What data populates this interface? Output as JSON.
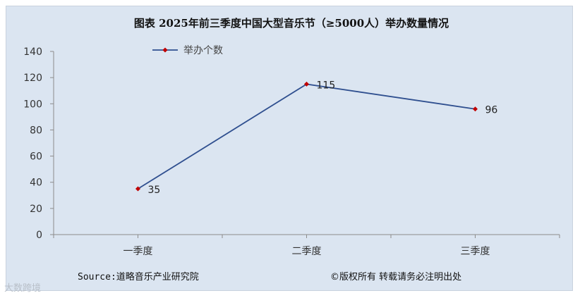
{
  "chart_data": {
    "type": "line",
    "title": "图表 2025年前三季度中国大型音乐节（≥5000人）举办数量情况",
    "categories": [
      "一季度",
      "二季度",
      "三季度"
    ],
    "series": [
      {
        "name": "举办个数",
        "values": [
          35,
          115,
          96
        ]
      }
    ],
    "ylim": [
      0,
      140
    ],
    "yticks": [
      0,
      20,
      40,
      60,
      80,
      100,
      120,
      140
    ],
    "grid": false,
    "legend": "top-left",
    "colors": {
      "line": "#2f4f8f",
      "marker": "#c00000",
      "background": "#dbe5f1"
    }
  },
  "footer": {
    "source": "Source:道略音乐产业研究院",
    "copyright": "©版权所有  转载请务必注明出处"
  },
  "watermark": "大数跨境"
}
